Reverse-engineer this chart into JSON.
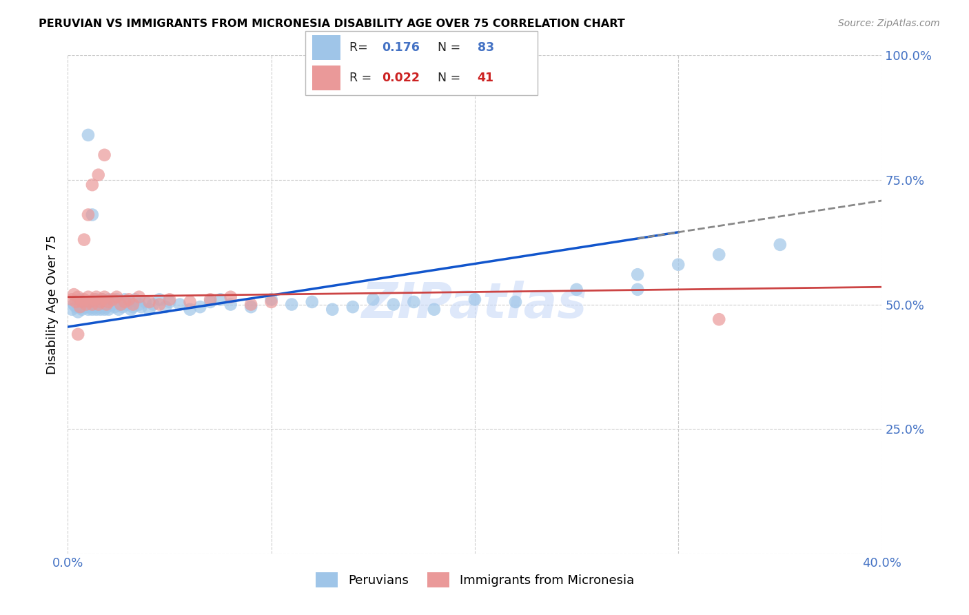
{
  "title": "PERUVIAN VS IMMIGRANTS FROM MICRONESIA DISABILITY AGE OVER 75 CORRELATION CHART",
  "source": "Source: ZipAtlas.com",
  "ylabel": "Disability Age Over 75",
  "xlim": [
    0.0,
    0.4
  ],
  "ylim": [
    0.0,
    1.0
  ],
  "xticks": [
    0.0,
    0.1,
    0.2,
    0.3,
    0.4
  ],
  "xtick_labels": [
    "0.0%",
    "",
    "",
    "",
    "40.0%"
  ],
  "yticks": [
    0.0,
    0.25,
    0.5,
    0.75,
    1.0
  ],
  "ytick_labels_right": [
    "",
    "25.0%",
    "50.0%",
    "75.0%",
    "100.0%"
  ],
  "blue_color": "#9fc5e8",
  "pink_color": "#ea9999",
  "blue_line_color": "#1155cc",
  "pink_line_color": "#cc4444",
  "blue_R": 0.176,
  "blue_N": 83,
  "pink_R": 0.022,
  "pink_N": 41,
  "blue_scatter_x": [
    0.002,
    0.003,
    0.004,
    0.005,
    0.006,
    0.006,
    0.007,
    0.007,
    0.008,
    0.008,
    0.009,
    0.009,
    0.01,
    0.01,
    0.01,
    0.011,
    0.011,
    0.012,
    0.012,
    0.013,
    0.013,
    0.014,
    0.014,
    0.015,
    0.015,
    0.016,
    0.016,
    0.017,
    0.017,
    0.018,
    0.018,
    0.019,
    0.019,
    0.02,
    0.02,
    0.021,
    0.022,
    0.023,
    0.024,
    0.025,
    0.025,
    0.026,
    0.027,
    0.028,
    0.029,
    0.03,
    0.031,
    0.032,
    0.033,
    0.035,
    0.036,
    0.038,
    0.04,
    0.042,
    0.045,
    0.048,
    0.05,
    0.055,
    0.06,
    0.065,
    0.07,
    0.075,
    0.08,
    0.09,
    0.1,
    0.11,
    0.12,
    0.13,
    0.14,
    0.15,
    0.16,
    0.17,
    0.18,
    0.2,
    0.22,
    0.25,
    0.28,
    0.3,
    0.32,
    0.35,
    0.01,
    0.012,
    0.28
  ],
  "blue_scatter_y": [
    0.49,
    0.5,
    0.495,
    0.485,
    0.51,
    0.495,
    0.5,
    0.49,
    0.505,
    0.495,
    0.5,
    0.495,
    0.5,
    0.505,
    0.49,
    0.5,
    0.495,
    0.505,
    0.49,
    0.5,
    0.495,
    0.51,
    0.49,
    0.505,
    0.495,
    0.5,
    0.49,
    0.51,
    0.495,
    0.505,
    0.49,
    0.5,
    0.495,
    0.51,
    0.49,
    0.505,
    0.5,
    0.495,
    0.51,
    0.505,
    0.49,
    0.5,
    0.495,
    0.51,
    0.5,
    0.505,
    0.49,
    0.495,
    0.51,
    0.5,
    0.495,
    0.505,
    0.49,
    0.5,
    0.51,
    0.495,
    0.505,
    0.5,
    0.49,
    0.495,
    0.505,
    0.51,
    0.5,
    0.495,
    0.51,
    0.5,
    0.505,
    0.49,
    0.495,
    0.51,
    0.5,
    0.505,
    0.49,
    0.51,
    0.505,
    0.53,
    0.56,
    0.58,
    0.6,
    0.62,
    0.84,
    0.68,
    0.53
  ],
  "pink_scatter_x": [
    0.002,
    0.003,
    0.004,
    0.005,
    0.006,
    0.007,
    0.008,
    0.009,
    0.01,
    0.011,
    0.012,
    0.013,
    0.014,
    0.015,
    0.016,
    0.017,
    0.018,
    0.019,
    0.02,
    0.022,
    0.024,
    0.026,
    0.028,
    0.03,
    0.032,
    0.035,
    0.04,
    0.045,
    0.05,
    0.06,
    0.07,
    0.08,
    0.09,
    0.1,
    0.008,
    0.01,
    0.012,
    0.015,
    0.018,
    0.32,
    0.005
  ],
  "pink_scatter_y": [
    0.51,
    0.52,
    0.505,
    0.515,
    0.495,
    0.505,
    0.51,
    0.5,
    0.515,
    0.505,
    0.5,
    0.51,
    0.515,
    0.5,
    0.505,
    0.51,
    0.515,
    0.5,
    0.505,
    0.51,
    0.515,
    0.5,
    0.505,
    0.51,
    0.5,
    0.515,
    0.505,
    0.5,
    0.51,
    0.505,
    0.51,
    0.515,
    0.5,
    0.505,
    0.63,
    0.68,
    0.74,
    0.76,
    0.8,
    0.47,
    0.44
  ],
  "background_color": "#ffffff",
  "grid_color": "#cccccc",
  "tick_color": "#4472c4",
  "watermark_color": "#c9daf8"
}
